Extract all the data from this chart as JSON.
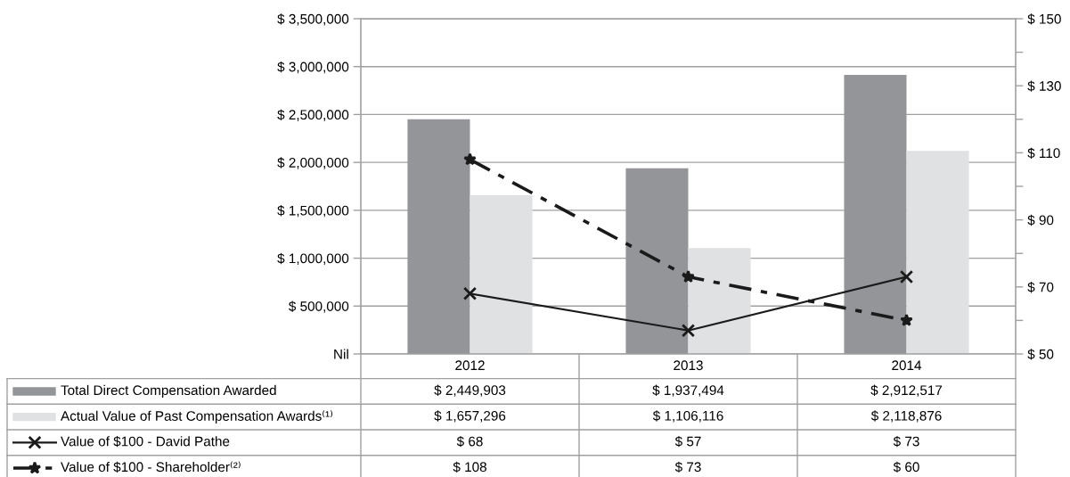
{
  "chart_data": {
    "type": "bar",
    "categories": [
      "2012",
      "2013",
      "2014"
    ],
    "series": [
      {
        "name": "Total Direct Compensation Awarded",
        "color": "#939598",
        "values": [
          2449903,
          1937494,
          2912517
        ],
        "value_labels": [
          "$ 2,449,903",
          "$ 1,937,494",
          "$ 2,912,517"
        ]
      },
      {
        "name": "Actual Value of Past Compensation Awards⁽¹⁾",
        "color": "#e0e1e3",
        "values": [
          1657296,
          1106116,
          2118876
        ],
        "value_labels": [
          "$ 1,657,296",
          "$ 1,106,116",
          "$ 2,118,876"
        ]
      },
      {
        "name": "Value of $100 - David Pathe",
        "type": "line",
        "axis": "y2",
        "color": "#1a1a1a",
        "marker": "cross",
        "line_style": "solid",
        "values": [
          68,
          57,
          73
        ],
        "value_labels": [
          "$ 68",
          "$ 57",
          "$ 73"
        ]
      },
      {
        "name": "Value of $100 - Shareholder⁽²⁾",
        "type": "line",
        "axis": "y2",
        "color": "#1a1a1a",
        "marker": "star",
        "line_style": "dashed",
        "values": [
          108,
          73,
          60
        ],
        "value_labels": [
          "$ 108",
          "$ 73",
          "$ 60"
        ]
      }
    ],
    "ylim": [
      0,
      3500000
    ],
    "yticks": [
      {
        "value": 0,
        "label": "Nil"
      },
      {
        "value": 500000,
        "label": "$ 500,000"
      },
      {
        "value": 1000000,
        "label": "$ 1,000,000"
      },
      {
        "value": 1500000,
        "label": "$ 1,500,000"
      },
      {
        "value": 2000000,
        "label": "$ 2,000,000"
      },
      {
        "value": 2500000,
        "label": "$ 2,500,000"
      },
      {
        "value": 3000000,
        "label": "$ 3,000,000"
      },
      {
        "value": 3500000,
        "label": "$ 3,500,000"
      }
    ],
    "y2lim": [
      50,
      150
    ],
    "y2ticks": [
      {
        "value": 50,
        "label": "$ 50"
      },
      {
        "value": 60,
        "label": null
      },
      {
        "value": 70,
        "label": "$ 70"
      },
      {
        "value": 80,
        "label": null
      },
      {
        "value": 90,
        "label": "$ 90"
      },
      {
        "value": 100,
        "label": null
      },
      {
        "value": 110,
        "label": "$ 110"
      },
      {
        "value": 120,
        "label": null
      },
      {
        "value": 130,
        "label": "$ 130"
      },
      {
        "value": 140,
        "label": null
      },
      {
        "value": 150,
        "label": "$ 150"
      }
    ],
    "grid": "y",
    "legend": "bottom"
  }
}
